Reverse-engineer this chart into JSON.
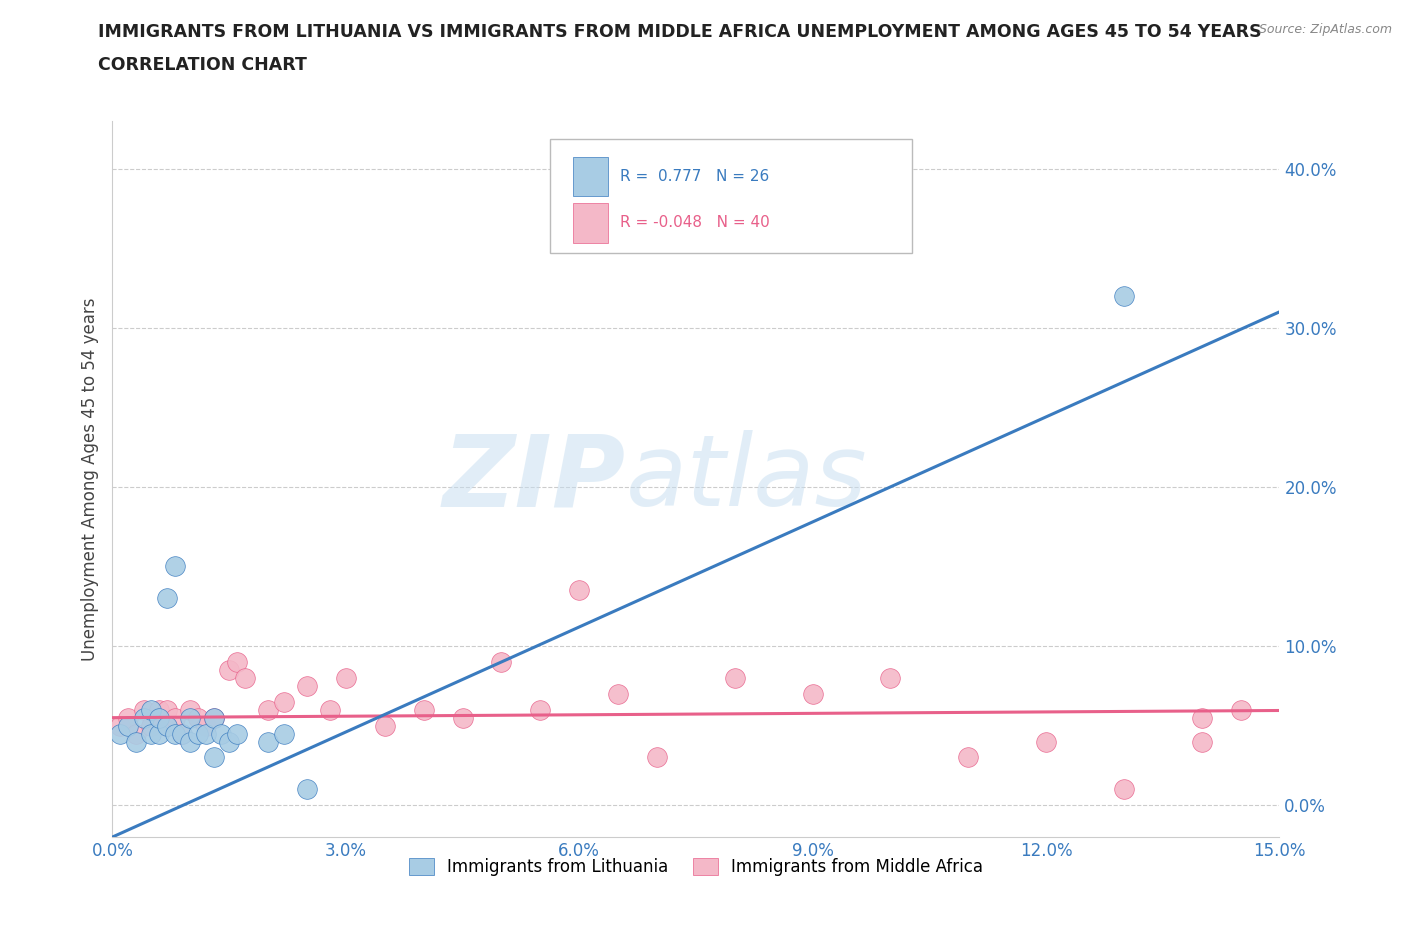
{
  "title_line1": "IMMIGRANTS FROM LITHUANIA VS IMMIGRANTS FROM MIDDLE AFRICA UNEMPLOYMENT AMONG AGES 45 TO 54 YEARS",
  "title_line2": "CORRELATION CHART",
  "source": "Source: ZipAtlas.com",
  "ylabel": "Unemployment Among Ages 45 to 54 years",
  "xlim": [
    0.0,
    0.15
  ],
  "ylim": [
    -0.02,
    0.43
  ],
  "xticks": [
    0.0,
    0.03,
    0.06,
    0.09,
    0.12,
    0.15
  ],
  "yticks": [
    0.0,
    0.1,
    0.2,
    0.3,
    0.4
  ],
  "xtick_labels": [
    "0.0%",
    "3.0%",
    "6.0%",
    "9.0%",
    "12.0%",
    "15.0%"
  ],
  "ytick_labels": [
    "0.0%",
    "10.0%",
    "20.0%",
    "30.0%",
    "40.0%"
  ],
  "color_blue": "#a8cce4",
  "color_pink": "#f4b8c8",
  "color_blue_dark": "#3a7bbf",
  "color_pink_dark": "#e8608a",
  "watermark": "ZIPatlas",
  "lith_slope": 2.2,
  "lith_intercept": -0.02,
  "africa_slope": 0.03,
  "africa_intercept": 0.055,
  "lithuania_x": [
    0.001,
    0.002,
    0.003,
    0.004,
    0.005,
    0.005,
    0.006,
    0.006,
    0.007,
    0.007,
    0.008,
    0.008,
    0.009,
    0.01,
    0.01,
    0.011,
    0.012,
    0.013,
    0.013,
    0.014,
    0.015,
    0.016,
    0.02,
    0.022,
    0.025,
    0.13
  ],
  "lithuania_y": [
    0.045,
    0.05,
    0.04,
    0.055,
    0.045,
    0.06,
    0.045,
    0.055,
    0.13,
    0.05,
    0.15,
    0.045,
    0.045,
    0.04,
    0.055,
    0.045,
    0.045,
    0.03,
    0.055,
    0.045,
    0.04,
    0.045,
    0.04,
    0.045,
    0.01,
    0.32
  ],
  "middle_africa_x": [
    0.001,
    0.002,
    0.003,
    0.004,
    0.005,
    0.006,
    0.006,
    0.007,
    0.007,
    0.008,
    0.009,
    0.01,
    0.011,
    0.012,
    0.013,
    0.015,
    0.016,
    0.017,
    0.02,
    0.022,
    0.025,
    0.028,
    0.03,
    0.035,
    0.04,
    0.045,
    0.05,
    0.055,
    0.06,
    0.065,
    0.07,
    0.08,
    0.09,
    0.1,
    0.11,
    0.12,
    0.13,
    0.14,
    0.14,
    0.145
  ],
  "middle_africa_y": [
    0.05,
    0.055,
    0.045,
    0.06,
    0.05,
    0.055,
    0.06,
    0.05,
    0.06,
    0.055,
    0.045,
    0.06,
    0.055,
    0.05,
    0.055,
    0.085,
    0.09,
    0.08,
    0.06,
    0.065,
    0.075,
    0.06,
    0.08,
    0.05,
    0.06,
    0.055,
    0.09,
    0.06,
    0.135,
    0.07,
    0.03,
    0.08,
    0.07,
    0.08,
    0.03,
    0.04,
    0.01,
    0.04,
    0.055,
    0.06
  ]
}
